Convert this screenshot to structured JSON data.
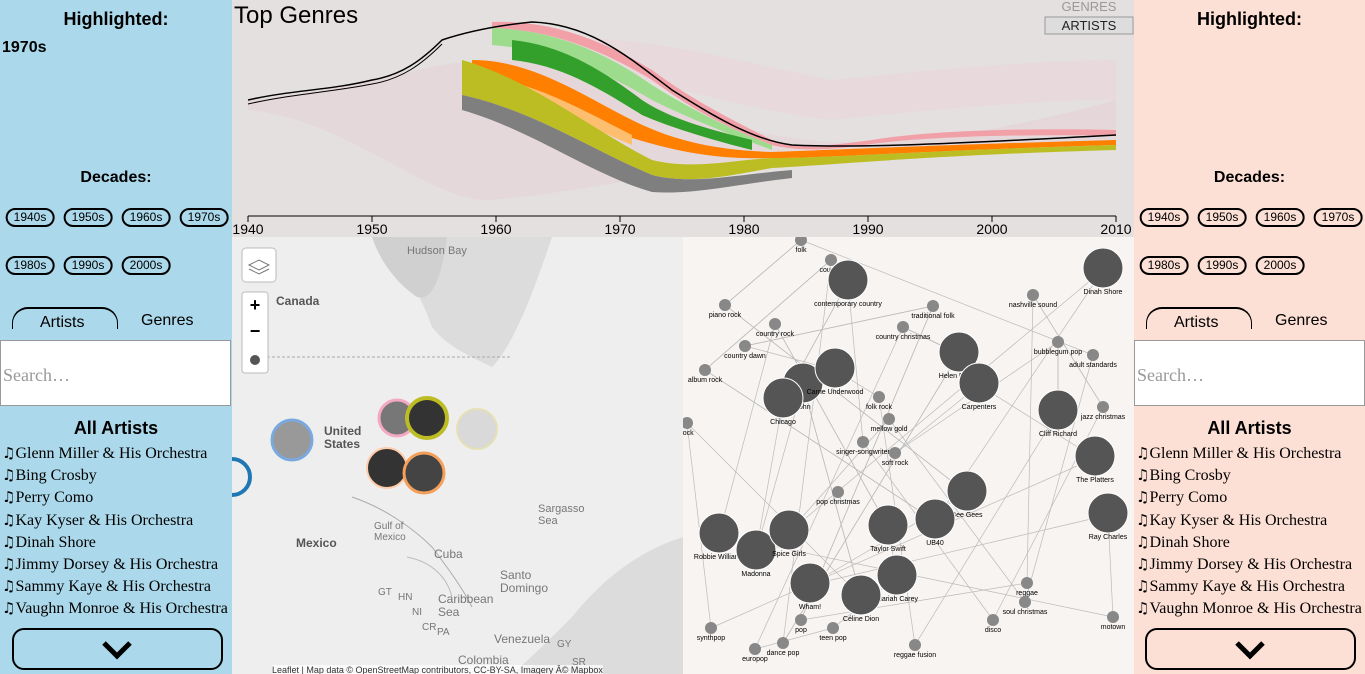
{
  "left_panel": {
    "highlighted_label": "Highlighted:",
    "highlighted_value": "1970s",
    "decades_label": "Decades:",
    "decades": [
      "1940s",
      "1950s",
      "1960s",
      "1970s",
      "1980s",
      "1990s",
      "2000s"
    ],
    "tabs": [
      "Artists",
      "Genres"
    ],
    "search_placeholder": "Search…",
    "list_title": "All Artists",
    "artists": [
      "Glenn Miller & His Orchestra",
      "Bing Crosby",
      "Perry Como",
      "Kay Kyser & His Orchestra",
      "Dinah Shore",
      "Jimmy Dorsey & His Orchestra",
      "Sammy Kaye & His Orchestra",
      "Vaughn Monroe & His Orchestra"
    ]
  },
  "right_panel": {
    "highlighted_label": "Highlighted:",
    "decades_label": "Decades:",
    "decades": [
      "1940s",
      "1950s",
      "1960s",
      "1970s",
      "1980s",
      "1990s",
      "2000s"
    ],
    "tabs": [
      "Artists",
      "Genres"
    ],
    "search_placeholder": "Search…",
    "list_title": "All Artists",
    "artists": [
      "Glenn Miller & His Orchestra",
      "Bing Crosby",
      "Perry Como",
      "Kay Kyser & His Orchestra",
      "Dinah Shore",
      "Jimmy Dorsey & His Orchestra",
      "Sammy Kaye & His Orchestra",
      "Vaughn Monroe & His Orchestra"
    ]
  },
  "timeline": {
    "title": "Top Genres",
    "toggle": [
      "GENRES",
      "ARTISTS"
    ],
    "xticks": [
      1940,
      1950,
      1960,
      1970,
      1980,
      1990,
      2000,
      2010
    ]
  },
  "map": {
    "labels": [
      "Hudson Bay",
      "Canada",
      "United States",
      "Gulf of Mexico",
      "Mexico",
      "Cuba",
      "Sargasso Sea",
      "Santo Domingo",
      "Caribbean Sea",
      "Venezuela",
      "Colombia",
      "GT",
      "HN",
      "NI",
      "CR",
      "PA",
      "GY",
      "SR"
    ],
    "zoom_in": "+",
    "zoom_out": "−",
    "attribution": "Leaflet | Map data © OpenStreetMap contributors, CC-BY-SA, Imagery Â© Mapbox"
  },
  "network": {
    "labels": [
      "folk",
      "country",
      "contemporary country",
      "piano rock",
      "country rock",
      "traditional folk",
      "nashville sound",
      "country dawn",
      "country christmas",
      "bubblegum pop",
      "album rock",
      "John",
      "Helen Reddy",
      "adult standards",
      "Carrie Underwood",
      "folk rock",
      "Carpenters",
      "Chicago",
      "mellow gold",
      "Cliff Richard",
      "singer-songwriter",
      "soft rock",
      "The Platters",
      "pop christmas",
      "Bee Gees",
      "Ray Charles",
      "UB40",
      "Robbie Williams",
      "Madonna",
      "Spice Girls",
      "Wham!",
      "Taylor Swift",
      "Mariah Carey",
      "Céline Dion",
      "reggae",
      "soul christmas",
      "disco",
      "motown",
      "pop",
      "teen pop",
      "dance pop",
      "europop",
      "reggae fusion",
      "synthpop",
      "Dinah Shore",
      "jazz christmas",
      "rock"
    ]
  }
}
